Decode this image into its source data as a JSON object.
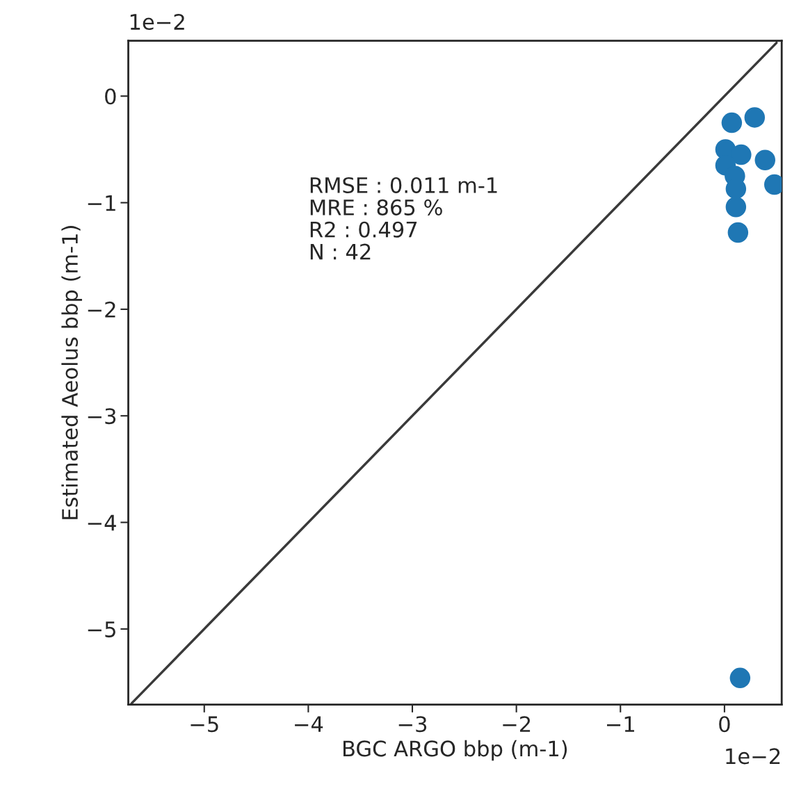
{
  "chart_data": {
    "type": "scatter",
    "xlabel": "BGC ARGO bbp (m-1)",
    "ylabel": "Estimated Aeolus bbp (m-1)",
    "series": [
      {
        "type": "line",
        "marker": "none",
        "color": "#3a3a3a",
        "x": [
          -5.7,
          0.5
        ],
        "values": [
          -5.7,
          0.5
        ]
      },
      {
        "color": "#1f77b4",
        "marker": "circle",
        "x": [
          0.01,
          0.16,
          0.01,
          0.1,
          0.11,
          0.07,
          0.29,
          0.39,
          0.48,
          0.11,
          0.13,
          0.15
        ],
        "values": [
          -0.5,
          -0.55,
          -0.65,
          -0.75,
          -0.87,
          -0.25,
          -0.2,
          -0.6,
          -0.83,
          -1.04,
          -1.28,
          -5.46
        ]
      }
    ],
    "xlim": [
      -5.73,
      0.55
    ],
    "ylim": [
      -5.71,
      0.52
    ],
    "xticks": [
      -5,
      -4,
      -3,
      -2,
      -1,
      0
    ],
    "yticks": [
      -5,
      -4,
      -3,
      -2,
      -1,
      0
    ],
    "grid": false,
    "annotations": [
      "RMSE : 0.011 m-1\nMRE : 865 %\nR2 : 0.497\nN : 42",
      "1e−2",
      "1e−2"
    ]
  }
}
